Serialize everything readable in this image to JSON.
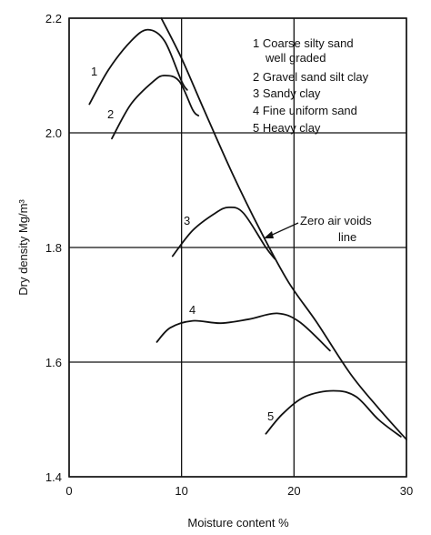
{
  "chart_data": {
    "type": "line",
    "title": "",
    "xlabel": "Moisture content %",
    "ylabel": "Dry density Mg/m³",
    "xlim": [
      0,
      30
    ],
    "ylim": [
      1.4,
      2.2
    ],
    "x_ticks": [
      "0",
      "10",
      "20",
      "30"
    ],
    "y_ticks": [
      "1.4",
      "1.6",
      "1.8",
      "2.0",
      "2.2"
    ],
    "grid": true,
    "legend_position": "top-right",
    "legend": [
      "1 Coarse silty sand",
      "well graded",
      "2 Gravel sand silt clay",
      "3 Sandy clay",
      "4 Fine uniform sand",
      "5 Heavy clay"
    ],
    "series": [
      {
        "name": "1",
        "points": [
          [
            1.8,
            2.05
          ],
          [
            3.5,
            2.11
          ],
          [
            5.5,
            2.16
          ],
          [
            7.0,
            2.18
          ],
          [
            8.5,
            2.16
          ],
          [
            10.0,
            2.09
          ],
          [
            10.5,
            2.075
          ]
        ]
      },
      {
        "name": "2",
        "points": [
          [
            3.8,
            1.99
          ],
          [
            5.5,
            2.05
          ],
          [
            7.5,
            2.09
          ],
          [
            8.5,
            2.1
          ],
          [
            9.8,
            2.09
          ],
          [
            11.0,
            2.04
          ],
          [
            11.5,
            2.03
          ]
        ]
      },
      {
        "name": "3",
        "points": [
          [
            9.2,
            1.785
          ],
          [
            11.0,
            1.83
          ],
          [
            13.0,
            1.86
          ],
          [
            14.2,
            1.87
          ],
          [
            15.5,
            1.86
          ],
          [
            17.5,
            1.8
          ],
          [
            18.3,
            1.78
          ]
        ]
      },
      {
        "name": "4",
        "points": [
          [
            7.8,
            1.635
          ],
          [
            9.0,
            1.66
          ],
          [
            11.0,
            1.672
          ],
          [
            13.5,
            1.668
          ],
          [
            16.0,
            1.675
          ],
          [
            18.5,
            1.685
          ],
          [
            20.5,
            1.67
          ],
          [
            23.2,
            1.62
          ]
        ]
      },
      {
        "name": "5",
        "points": [
          [
            17.5,
            1.475
          ],
          [
            19.0,
            1.51
          ],
          [
            21.0,
            1.54
          ],
          [
            23.5,
            1.55
          ],
          [
            25.5,
            1.54
          ],
          [
            27.5,
            1.5
          ],
          [
            29.5,
            1.47
          ]
        ]
      },
      {
        "name": "Zero air voids line",
        "points": [
          [
            8.2,
            2.2
          ],
          [
            10.0,
            2.13
          ],
          [
            12.0,
            2.04
          ],
          [
            14.5,
            1.93
          ],
          [
            17.0,
            1.83
          ],
          [
            19.5,
            1.74
          ],
          [
            22.0,
            1.67
          ],
          [
            25.0,
            1.58
          ],
          [
            27.5,
            1.52
          ],
          [
            30.0,
            1.465
          ]
        ]
      }
    ],
    "curve_labels": [
      "1",
      "2",
      "3",
      "4",
      "5"
    ],
    "annotation": {
      "line1": "Zero air voids",
      "line2": "line"
    }
  }
}
